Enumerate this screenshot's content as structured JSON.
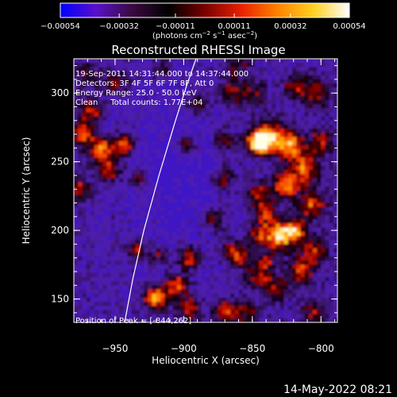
{
  "chart_data": {
    "type": "heatmap",
    "title": "Reconstructed RHESSI Image",
    "xlabel": "Heliocentric X (arcsec)",
    "ylabel": "Heliocentric Y (arcsec)",
    "xlim": [
      -980,
      -788
    ],
    "ylim": [
      133,
      325
    ],
    "xticks": [
      -950,
      -900,
      -850,
      -800
    ],
    "yticks": [
      150,
      200,
      250,
      300
    ],
    "xtick_labels": [
      "−950",
      "−900",
      "−850",
      "−800"
    ],
    "ytick_labels": [
      "150",
      "200",
      "250",
      "300"
    ],
    "colorbar": {
      "range": [
        -0.00054,
        0.00054
      ],
      "ticks": [
        -0.00054,
        -0.00032,
        -0.00011,
        0.00011,
        0.00032,
        0.00054
      ],
      "tick_labels": [
        "−0.00054",
        "−0.00032",
        "−0.00011",
        "0.00011",
        "0.00032",
        "0.00054"
      ],
      "units_prefix": "(photons cm",
      "units_exp1": "−2",
      "units_mid": " s",
      "units_exp2": "−1",
      "units_mid2": " asec",
      "units_exp3": "−2",
      "units_suffix": ")",
      "colors": [
        "#0000ff",
        "#5a10c8",
        "#3a0a40",
        "#000000",
        "#7a0000",
        "#e82000",
        "#ff8000",
        "#ffd020",
        "#ffffff"
      ]
    },
    "annotations": {
      "time": "19-Sep-2011 14:31:44.000 to 14:37:44.000",
      "detectors": "Detectors: 3F 4F 5F 6F 7F 8F, Att 0",
      "energy": "Energy Range: 25.0 - 50.0 keV",
      "clean": "Clean     Total counts: 1.77E+04",
      "peak": "Position of Peak = [-844,262]"
    },
    "peak": [
      -844,
      262
    ],
    "limb": [
      [
        -943,
        133
      ],
      [
        -937,
        165
      ],
      [
        -929,
        200
      ],
      [
        -918,
        240
      ],
      [
        -906,
        280
      ],
      [
        -898,
        305
      ],
      [
        -891,
        325
      ]
    ],
    "hotspots": [
      [
        -846,
        264,
        1.0,
        6
      ],
      [
        -838,
        268,
        0.85,
        8
      ],
      [
        -822,
        262,
        0.8,
        7
      ],
      [
        -812,
        245,
        0.7,
        8
      ],
      [
        -826,
        232,
        0.75,
        7
      ],
      [
        -846,
        226,
        0.55,
        6
      ],
      [
        -840,
        212,
        0.6,
        6
      ],
      [
        -830,
        196,
        0.95,
        7
      ],
      [
        -819,
        200,
        0.7,
        6
      ],
      [
        -845,
        196,
        0.55,
        6
      ],
      [
        -806,
        218,
        0.65,
        7
      ],
      [
        -805,
        185,
        0.55,
        7
      ],
      [
        -815,
        170,
        0.55,
        7
      ],
      [
        -846,
        166,
        0.5,
        6
      ],
      [
        -833,
        158,
        0.5,
        6
      ],
      [
        -859,
        180,
        0.65,
        5
      ],
      [
        -866,
        186,
        0.5,
        5
      ],
      [
        -840,
        178,
        0.5,
        5
      ],
      [
        -870,
        141,
        0.6,
        6
      ],
      [
        -855,
        141,
        0.5,
        6
      ],
      [
        -805,
        140,
        0.45,
        7
      ],
      [
        -920,
        151,
        0.95,
        6
      ],
      [
        -905,
        160,
        0.75,
        6
      ],
      [
        -896,
        180,
        0.7,
        6
      ],
      [
        -896,
        143,
        0.6,
        6
      ],
      [
        -935,
        186,
        0.6,
        5
      ],
      [
        -918,
        182,
        0.5,
        5
      ],
      [
        -960,
        258,
        0.85,
        6
      ],
      [
        -944,
        262,
        0.75,
        6
      ],
      [
        -955,
        243,
        0.65,
        6
      ],
      [
        -933,
        237,
        0.55,
        5
      ],
      [
        -973,
        270,
        0.7,
        6
      ],
      [
        -968,
        287,
        0.6,
        6
      ],
      [
        -976,
        230,
        0.55,
        6
      ],
      [
        -898,
        262,
        0.6,
        5
      ],
      [
        -890,
        292,
        0.45,
        6
      ],
      [
        -866,
        300,
        0.5,
        7
      ],
      [
        -870,
        265,
        0.5,
        6
      ],
      [
        -870,
        238,
        0.5,
        6
      ],
      [
        -878,
        208,
        0.45,
        6
      ],
      [
        -803,
        300,
        0.5,
        8
      ],
      [
        -800,
        265,
        0.55,
        6
      ],
      [
        -820,
        305,
        0.45,
        6
      ],
      [
        -848,
        300,
        0.45,
        6
      ],
      [
        -950,
        308,
        0.5,
        6
      ],
      [
        -970,
        312,
        0.45,
        6
      ],
      [
        -860,
        320,
        0.4,
        6
      ],
      [
        -915,
        318,
        0.45,
        5
      ]
    ]
  },
  "footer_date": "14-May-2022 08:21"
}
